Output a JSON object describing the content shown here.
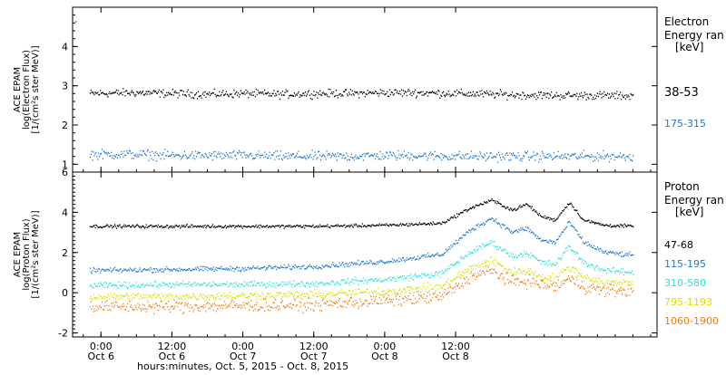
{
  "chart_data": [
    {
      "type": "scatter",
      "ylabel_lines": [
        "ACE EPAM",
        "log(Electron Flux)",
        "[1/(cm²s ster MeV)]"
      ],
      "ylim": [
        0.8,
        5.0
      ],
      "yticks": [
        1,
        2,
        3,
        4
      ],
      "legend_title": [
        "Electron",
        "Energy ran"
      ],
      "legend_units": "[keV]",
      "series": [
        {
          "name": "38-53",
          "color": "#000000",
          "x": [
            -0.08,
            0.25,
            0.5,
            0.75,
            1.0,
            1.25,
            1.5,
            1.75,
            2.0,
            2.25,
            2.5,
            2.75,
            3.0,
            3.25,
            3.5,
            3.75
          ],
          "y": [
            2.8,
            2.82,
            2.8,
            2.78,
            2.8,
            2.78,
            2.8,
            2.8,
            2.82,
            2.82,
            2.8,
            2.78,
            2.76,
            2.75,
            2.75,
            2.74
          ],
          "spread": 0.1
        },
        {
          "name": "175-315",
          "color": "#1f77d0",
          "x": [
            -0.08,
            0.25,
            0.5,
            0.75,
            1.0,
            1.25,
            1.5,
            1.75,
            2.0,
            2.25,
            2.5,
            2.75,
            3.0,
            3.25,
            3.5,
            3.75
          ],
          "y": [
            1.25,
            1.25,
            1.22,
            1.22,
            1.22,
            1.2,
            1.2,
            1.2,
            1.22,
            1.22,
            1.2,
            1.2,
            1.2,
            1.2,
            1.2,
            1.2
          ],
          "spread": 0.12
        }
      ]
    },
    {
      "type": "scatter",
      "ylabel_lines": [
        "ACE EPAM",
        "log(Proton Flux)",
        "[1/(cm²s ster MeV)]"
      ],
      "ylim": [
        -2.2,
        6.0
      ],
      "yticks": [
        -2,
        0,
        2,
        4,
        6
      ],
      "legend_title": [
        "Proton",
        "Energy ran"
      ],
      "legend_units": "[keV]",
      "series": [
        {
          "name": "47-68",
          "color": "#000000",
          "x": [
            -0.08,
            0.5,
            1.0,
            1.5,
            2.0,
            2.4,
            2.6,
            2.75,
            2.9,
            3.0,
            3.1,
            3.2,
            3.3,
            3.4,
            3.55,
            3.75
          ],
          "y": [
            3.3,
            3.3,
            3.3,
            3.3,
            3.35,
            3.45,
            4.2,
            4.6,
            4.1,
            4.4,
            3.8,
            3.6,
            4.5,
            3.6,
            3.35,
            3.3
          ],
          "spread": 0.08
        },
        {
          "name": "115-195",
          "color": "#1f77d0",
          "x": [
            -0.08,
            0.5,
            1.0,
            1.5,
            2.0,
            2.4,
            2.6,
            2.75,
            2.9,
            3.0,
            3.1,
            3.2,
            3.3,
            3.4,
            3.55,
            3.75
          ],
          "y": [
            1.1,
            1.15,
            1.2,
            1.3,
            1.55,
            1.9,
            3.1,
            3.7,
            3.0,
            3.2,
            2.6,
            2.5,
            3.5,
            2.5,
            2.0,
            1.85
          ],
          "spread": 0.12
        },
        {
          "name": "310-580",
          "color": "#30e0d8",
          "x": [
            -0.08,
            0.5,
            1.0,
            1.5,
            2.0,
            2.4,
            2.6,
            2.75,
            2.9,
            3.0,
            3.1,
            3.2,
            3.3,
            3.4,
            3.55,
            3.75
          ],
          "y": [
            0.35,
            0.4,
            0.4,
            0.45,
            0.65,
            0.95,
            2.0,
            2.5,
            1.8,
            2.0,
            1.5,
            1.4,
            2.3,
            1.5,
            1.1,
            1.0
          ],
          "spread": 0.15
        },
        {
          "name": "795-1193",
          "color": "#d8e000",
          "x": [
            -0.08,
            0.5,
            1.0,
            1.5,
            2.0,
            2.4,
            2.6,
            2.75,
            2.9,
            3.0,
            3.1,
            3.2,
            3.3,
            3.4,
            3.55,
            3.75
          ],
          "y": [
            -0.2,
            -0.2,
            -0.15,
            -0.1,
            0.05,
            0.3,
            1.2,
            1.6,
            1.0,
            1.1,
            0.8,
            0.7,
            1.3,
            0.8,
            0.5,
            0.5
          ],
          "spread": 0.2
        },
        {
          "name": "1060-1900",
          "color": "#f07a10",
          "x": [
            -0.08,
            0.5,
            1.0,
            1.5,
            2.0,
            2.4,
            2.6,
            2.75,
            2.9,
            3.0,
            3.1,
            3.2,
            3.3,
            3.4,
            3.55,
            3.75
          ],
          "y": [
            -0.7,
            -0.7,
            -0.65,
            -0.6,
            -0.4,
            -0.2,
            0.8,
            1.1,
            0.5,
            0.6,
            0.4,
            0.3,
            0.7,
            0.3,
            0.1,
            0.1
          ],
          "spread": 0.3
        }
      ]
    }
  ],
  "xaxis": {
    "xlim": [
      -0.2,
      3.92
    ],
    "ticks": [
      {
        "x": 0.0,
        "time": "0:00",
        "date": "Oct 6"
      },
      {
        "x": 0.5,
        "time": "12:00",
        "date": "Oct 6"
      },
      {
        "x": 1.0,
        "time": "0:00",
        "date": "Oct 7"
      },
      {
        "x": 1.5,
        "time": "12:00",
        "date": "Oct 7"
      },
      {
        "x": 2.0,
        "time": "0:00",
        "date": "Oct 8"
      },
      {
        "x": 2.5,
        "time": "12:00",
        "date": "Oct 8"
      }
    ],
    "label": "hours:minutes, Oct.  5, 2015 - Oct.  8, 2015"
  }
}
